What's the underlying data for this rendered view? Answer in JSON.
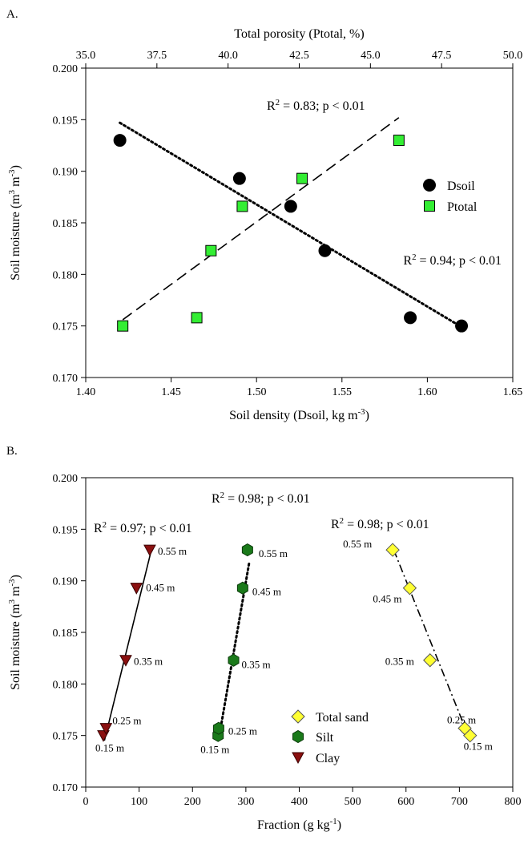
{
  "chart_data": [
    {
      "panel_label": "A.",
      "type": "scatter",
      "xlabel": "Soil density (Dsoil, kg m",
      "xlabel_sup": "-3",
      "xlabel_end": ")",
      "x_top_label": "Total porosity (Ptotal, %)",
      "ylabel": "Soil moisture (m",
      "ylabel_sup1": "3",
      "ylabel_mid": " m",
      "ylabel_sup2": "-3",
      "ylabel_end": ")",
      "xlim": [
        1.4,
        1.65
      ],
      "x_top_lim": [
        35.0,
        50.0
      ],
      "ylim": [
        0.17,
        0.2
      ],
      "x_ticks": [
        "1.40",
        "1.45",
        "1.50",
        "1.55",
        "1.60",
        "1.65"
      ],
      "x_top_ticks": [
        "35.0",
        "37.5",
        "40.0",
        "42.5",
        "45.0",
        "47.5",
        "50.0"
      ],
      "y_ticks": [
        "0.170",
        "0.175",
        "0.180",
        "0.185",
        "0.190",
        "0.195",
        "0.200"
      ],
      "legend": {
        "position": "right",
        "items": [
          "Dsoil",
          "Ptotal"
        ]
      },
      "series": [
        {
          "name": "Dsoil",
          "axis": "bottom",
          "marker": "circle",
          "color": "#000000",
          "points": [
            [
              1.42,
              0.193
            ],
            [
              1.49,
              0.1893
            ],
            [
              1.52,
              0.1866
            ],
            [
              1.54,
              0.1823
            ],
            [
              1.59,
              0.1758
            ],
            [
              1.62,
              0.175
            ]
          ],
          "fit": {
            "x": [
              1.42,
              1.62
            ],
            "y": [
              0.1947,
              0.1749
            ],
            "style": "dotted"
          },
          "annotation": {
            "text": "R",
            "sup": "2",
            "rest": " = 0.94; p < 0.01"
          }
        },
        {
          "name": "Ptotal",
          "axis": "top",
          "marker": "square",
          "color": "#33ee33",
          "points": [
            [
              36.3,
              0.175
            ],
            [
              38.9,
              0.1758
            ],
            [
              39.4,
              0.1823
            ],
            [
              40.5,
              0.1866
            ],
            [
              42.6,
              0.1893
            ],
            [
              46.0,
              0.193
            ]
          ],
          "fit": {
            "x": [
              36.3,
              46.0
            ],
            "y": [
              0.1756,
              0.1952
            ],
            "style": "dashed"
          },
          "annotation": {
            "text": "R",
            "sup": "2",
            "rest": " = 0.83; p < 0.01"
          }
        }
      ]
    },
    {
      "panel_label": "B.",
      "type": "scatter",
      "xlabel": "Fraction (g kg",
      "xlabel_sup": "-1",
      "xlabel_end": ")",
      "ylabel": "Soil moisture (m",
      "ylabel_sup1": "3",
      "ylabel_mid": " m",
      "ylabel_sup2": "-3",
      "ylabel_end": ")",
      "xlim": [
        0,
        800
      ],
      "ylim": [
        0.17,
        0.2
      ],
      "x_ticks": [
        "0",
        "100",
        "200",
        "300",
        "400",
        "500",
        "600",
        "700",
        "800"
      ],
      "y_ticks": [
        "0.170",
        "0.175",
        "0.180",
        "0.185",
        "0.190",
        "0.195",
        "0.200"
      ],
      "legend": {
        "position": "bottom-center",
        "items": [
          "Total sand",
          "Silt",
          "Clay"
        ]
      },
      "series": [
        {
          "name": "Total sand",
          "marker": "diamond",
          "color": "#ffff33",
          "points": [
            [
              720,
              0.175
            ],
            [
              710,
              0.1757
            ],
            [
              645,
              0.1823
            ],
            [
              607,
              0.1893
            ],
            [
              575,
              0.193
            ]
          ],
          "depths": [
            "0.15 m",
            "0.25 m",
            "0.35 m",
            "0.45 m",
            "0.55 m"
          ],
          "fit": {
            "x": [
              577,
              718
            ],
            "y": [
              0.193,
              0.1748
            ],
            "style": "dashdot"
          },
          "annotation": {
            "text": "R",
            "sup": "2",
            "rest": " = 0.98; p < 0.01"
          }
        },
        {
          "name": "Silt",
          "marker": "hexagon",
          "color": "#1a7a1a",
          "points": [
            [
              248,
              0.175
            ],
            [
              249,
              0.1757
            ],
            [
              277,
              0.1823
            ],
            [
              294,
              0.1893
            ],
            [
              303,
              0.193
            ]
          ],
          "depths": [
            "0.15 m",
            "0.25 m",
            "0.35 m",
            "0.45 m",
            "0.55 m"
          ],
          "fit": {
            "x": [
              250,
              306
            ],
            "y": [
              0.1749,
              0.1917
            ],
            "style": "dotted"
          },
          "annotation": {
            "text": "R",
            "sup": "2",
            "rest": " = 0.97; p < 0.01"
          }
        },
        {
          "name": "Clay",
          "marker": "triangle-down",
          "color": "#8b1010",
          "points": [
            [
              33,
              0.175
            ],
            [
              38,
              0.1757
            ],
            [
              75,
              0.1823
            ],
            [
              95,
              0.1893
            ],
            [
              120,
              0.193
            ]
          ],
          "depths": [
            "0.15 m",
            "0.25 m",
            "0.35 m",
            "0.45 m",
            "0.55 m"
          ],
          "fit": {
            "x": [
              35,
              123
            ],
            "y": [
              0.1745,
              0.193
            ],
            "style": "solid"
          },
          "annotation": {
            "text": "R",
            "sup": "2",
            "rest": " = 0.98; p < 0.01"
          }
        }
      ]
    }
  ]
}
